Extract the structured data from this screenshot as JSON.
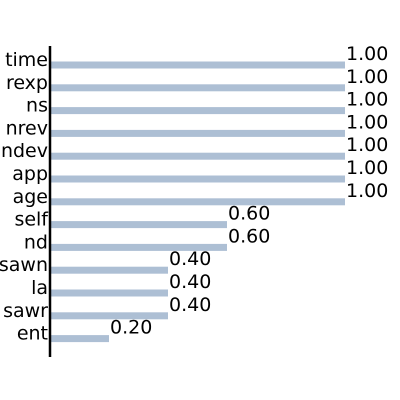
{
  "chart_data": {
    "type": "bar",
    "orientation": "horizontal",
    "categories": [
      "time",
      "rexp",
      "ns",
      "nrev",
      "ndev",
      "app",
      "age",
      "self",
      "nd",
      "sawn",
      "la",
      "sawr",
      "ent"
    ],
    "values": [
      1.0,
      1.0,
      1.0,
      1.0,
      1.0,
      1.0,
      1.0,
      0.6,
      0.6,
      0.4,
      0.4,
      0.4,
      0.2
    ],
    "value_labels": [
      "1.00",
      "1.00",
      "1.00",
      "1.00",
      "1.00",
      "1.00",
      "1.00",
      "0.60",
      "0.60",
      "0.40",
      "0.40",
      "0.40",
      "0.20"
    ],
    "xlim": [
      0,
      1.0
    ],
    "title": "",
    "xlabel": "",
    "ylabel": "",
    "grid": false,
    "legend": "none",
    "bar_color": "#adbfd4",
    "axis_color": "#000000"
  }
}
